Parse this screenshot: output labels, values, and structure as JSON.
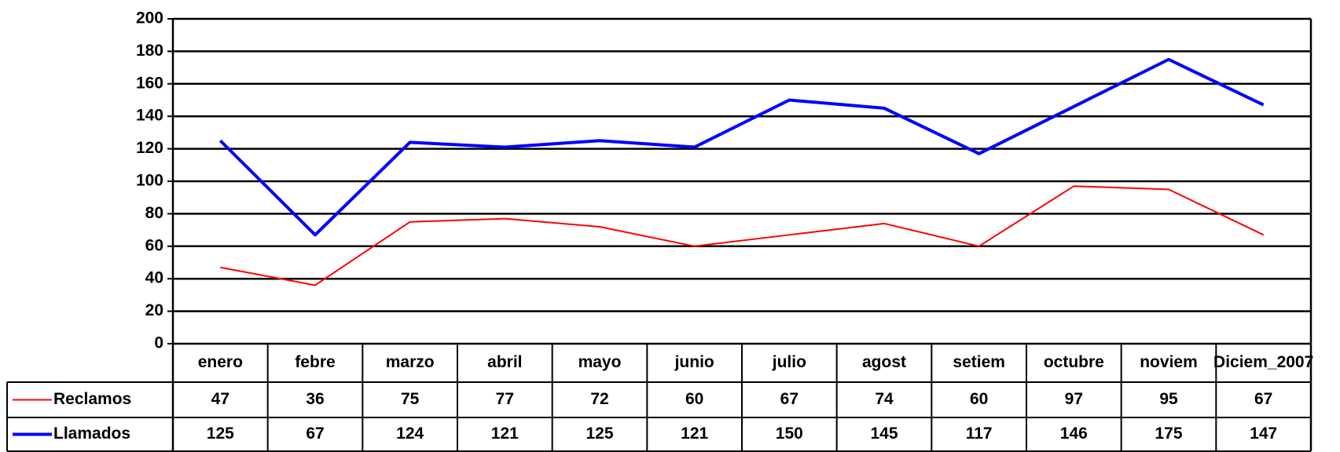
{
  "chart_data": {
    "type": "line",
    "categories": [
      "enero",
      "febre",
      "marzo",
      "abril",
      "mayo",
      "junio",
      "julio",
      "agost",
      "setiem",
      "octubre",
      "noviem",
      "Diciem_2007"
    ],
    "series": [
      {
        "name": "Reclamos",
        "color": "#ff0000",
        "values": [
          47,
          36,
          75,
          77,
          72,
          60,
          67,
          74,
          60,
          97,
          95,
          67
        ]
      },
      {
        "name": "Llamados",
        "color": "#0000ff",
        "values": [
          125,
          67,
          124,
          121,
          125,
          121,
          150,
          145,
          117,
          146,
          175,
          147
        ]
      }
    ],
    "ylim": [
      0,
      200
    ],
    "yticks": [
      0,
      20,
      40,
      60,
      80,
      100,
      120,
      140,
      160,
      180,
      200
    ],
    "grid": true
  }
}
